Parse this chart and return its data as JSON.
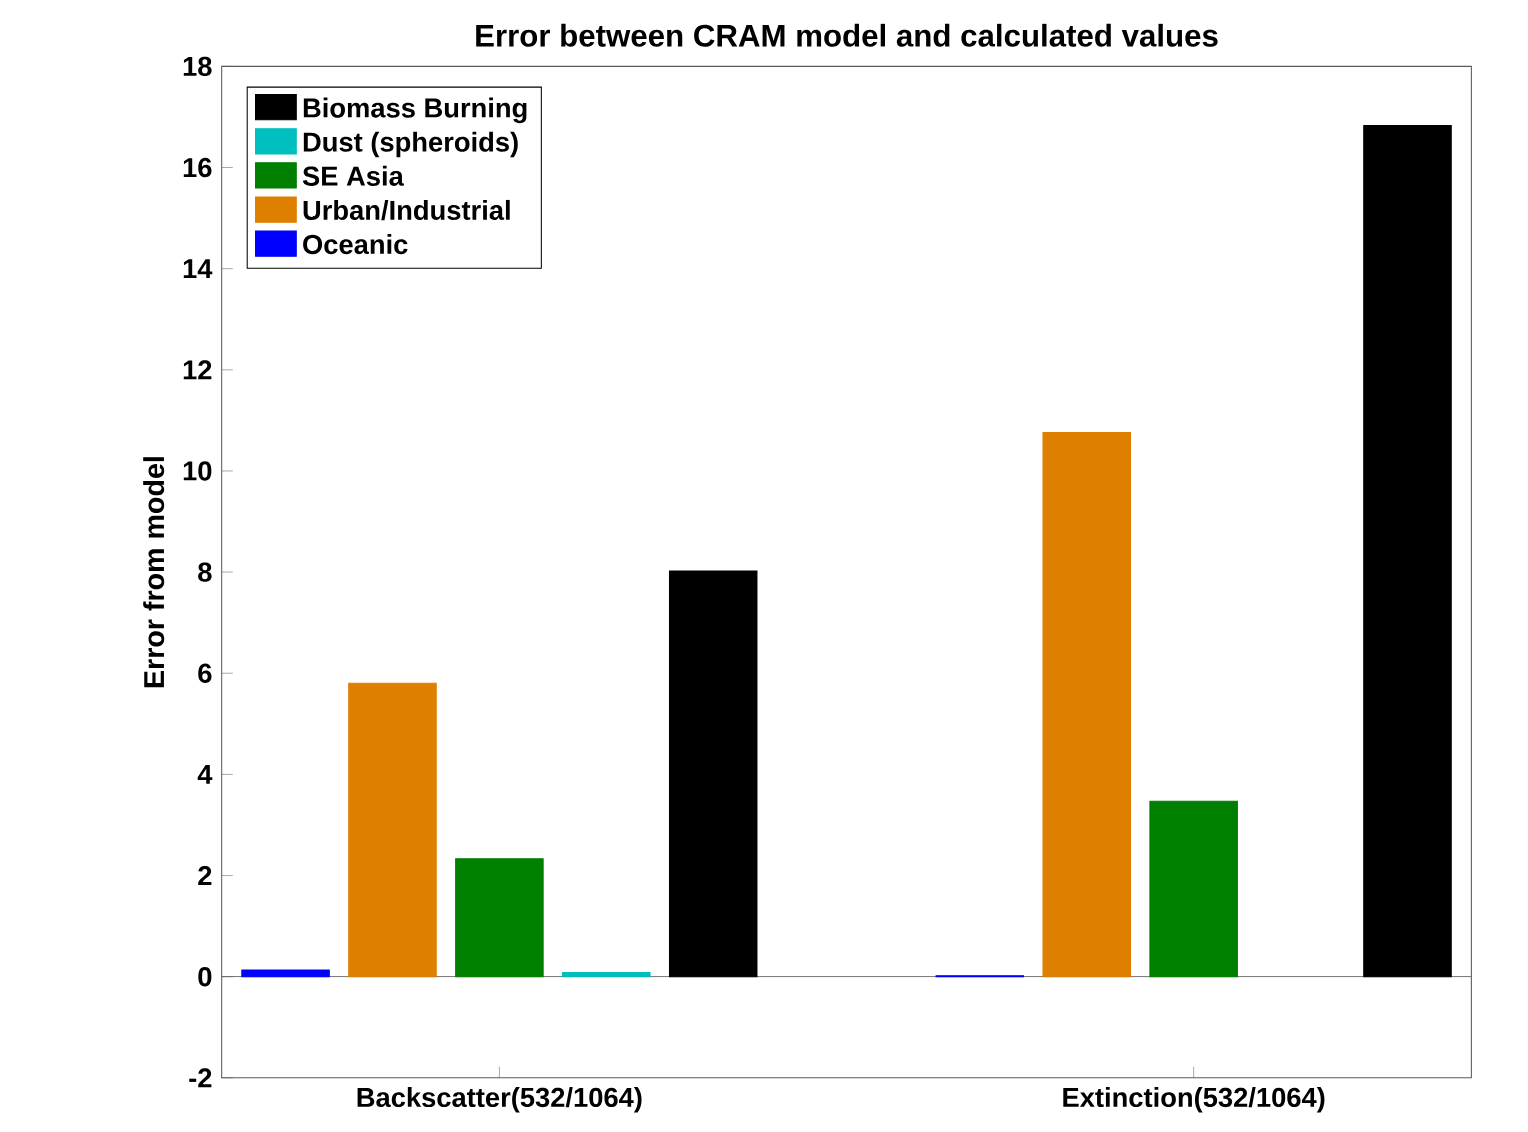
{
  "chart_data": {
    "type": "bar",
    "title": "Error between CRAM model and calculated values",
    "ylabel": "Error from model",
    "categories": [
      "Backscatter(532/1064)",
      "Extinction(532/1064)"
    ],
    "series": [
      {
        "name": "Oceanic",
        "color": "#0000ff",
        "values": [
          0.13,
          0.02
        ]
      },
      {
        "name": "Urban/Industrial",
        "color": "#df7f00",
        "values": [
          5.8,
          10.76
        ]
      },
      {
        "name": "SE Asia",
        "color": "#007f00",
        "values": [
          2.33,
          3.47
        ]
      },
      {
        "name": "Dust (spheroids)",
        "color": "#00bfbf",
        "values": [
          0.08,
          null
        ]
      },
      {
        "name": "Biomass Burning",
        "color": "#000000",
        "values": [
          8.02,
          16.83
        ]
      }
    ],
    "ylim": [
      -2,
      18
    ],
    "yticks": [
      -2,
      0,
      2,
      4,
      6,
      8,
      10,
      12,
      14,
      16,
      18
    ],
    "legend": "top left",
    "ref_lines": [
      {
        "axis": "y",
        "value": 0,
        "color": "#555555"
      }
    ]
  }
}
